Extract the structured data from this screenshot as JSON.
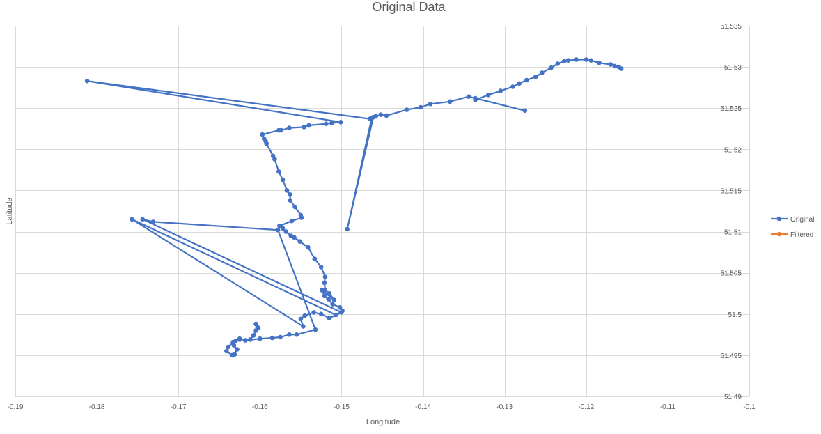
{
  "chart_data": {
    "type": "scatter",
    "title": "Original Data",
    "xlabel": "Longitude",
    "ylabel": "Latitude",
    "xlim": [
      -0.19,
      -0.1
    ],
    "ylim": [
      51.49,
      51.535
    ],
    "x_ticks": [
      -0.19,
      -0.18,
      -0.17,
      -0.16,
      -0.15,
      -0.14,
      -0.13,
      -0.12,
      -0.11,
      -0.1
    ],
    "x_tick_labels": [
      "-0.19",
      "-0.18",
      "-0.17",
      "-0.16",
      "-0.15",
      "-0.14",
      "-0.13",
      "-0.12",
      "-0.11",
      "-0.1"
    ],
    "y_ticks": [
      51.49,
      51.495,
      51.5,
      51.505,
      51.51,
      51.515,
      51.52,
      51.525,
      51.53,
      51.535
    ],
    "y_tick_labels": [
      "51.49",
      "51.495",
      "51.5",
      "51.505",
      "51.51",
      "51.515",
      "51.52",
      "51.525",
      "51.53",
      "51.535"
    ],
    "grid": true,
    "legend_position": "right",
    "series": [
      {
        "name": "Original",
        "color": "#4472c4",
        "mode": "lines+markers",
        "x": [
          -0.1275,
          -0.1336,
          -0.1344,
          -0.1367,
          -0.1391,
          -0.1403,
          -0.142,
          -0.1445,
          -0.1452,
          -0.1458,
          -0.1461,
          -0.1493,
          -0.1463,
          -0.1465,
          -0.1812,
          -0.1501,
          -0.1512,
          -0.1519,
          -0.154,
          -0.1546,
          -0.1564,
          -0.1574,
          -0.1577,
          -0.1597,
          -0.1595,
          -0.1593,
          -0.1592,
          -0.1584,
          -0.1582,
          -0.1577,
          -0.1572,
          -0.1567,
          -0.1563,
          -0.1563,
          -0.1557,
          -0.155,
          -0.1549,
          -0.1561,
          -0.1576,
          -0.1572,
          -0.1568,
          -0.1562,
          -0.1558,
          -0.1551,
          -0.1541,
          -0.1533,
          -0.1525,
          -0.152,
          -0.1521,
          -0.152,
          -0.1515,
          -0.1509,
          -0.1524,
          -0.1521,
          -0.1516,
          -0.1511,
          -0.1502,
          -0.1499,
          -0.1507,
          -0.1757,
          -0.1547,
          -0.155,
          -0.1545,
          -0.1534,
          -0.1525,
          -0.1515,
          -0.15,
          -0.1744,
          -0.1731,
          -0.1578,
          -0.1532,
          -0.1555,
          -0.1564,
          -0.1575,
          -0.1585,
          -0.16,
          -0.1618,
          -0.1625,
          -0.1633,
          -0.1639,
          -0.1641,
          -0.1634,
          -0.1631,
          -0.1628,
          -0.1632,
          -0.163,
          -0.1625,
          -0.1612,
          -0.1608,
          -0.1605,
          -0.1603,
          -0.1605,
          -0.1602
        ],
        "y": [
          51.5247,
          51.5262,
          51.5264,
          51.5258,
          51.5255,
          51.5251,
          51.5248,
          51.5241,
          51.5242,
          51.524,
          51.5239,
          51.5103,
          51.5238,
          51.5237,
          51.5283,
          51.5233,
          51.5232,
          51.5231,
          51.5229,
          51.5227,
          51.5226,
          51.5223,
          51.5223,
          51.5218,
          51.5213,
          51.521,
          51.5207,
          51.5192,
          51.5188,
          51.5173,
          51.5163,
          51.515,
          51.5145,
          51.5138,
          51.513,
          51.512,
          51.5117,
          51.5113,
          51.5107,
          51.5104,
          51.51,
          51.5095,
          51.5093,
          51.5088,
          51.5081,
          51.5067,
          51.5057,
          51.5045,
          51.5038,
          51.5029,
          51.5025,
          51.5017,
          51.5029,
          51.5022,
          51.5018,
          51.5012,
          51.5008,
          51.5004,
          51.4999,
          51.5115,
          51.4985,
          51.4994,
          51.4998,
          51.5002,
          51.5,
          51.4995,
          51.5002,
          51.5115,
          51.5112,
          51.5102,
          51.4981,
          51.4975,
          51.4975,
          51.4972,
          51.4971,
          51.497,
          51.4968,
          51.497,
          51.4966,
          51.496,
          51.4955,
          51.495,
          51.4951,
          51.4957,
          51.4962,
          51.4967,
          51.4969,
          51.4969,
          51.4974,
          51.498,
          51.4984,
          51.4988,
          51.4983
        ]
      },
      {
        "name": "Original",
        "color": "#4472c4",
        "mode": "lines+markers",
        "x": [
          -0.1336,
          -0.132,
          -0.1305,
          -0.129,
          -0.1282,
          -0.1273,
          -0.1262,
          -0.1254,
          -0.1243,
          -0.1235,
          -0.1227,
          -0.1222,
          -0.1212,
          -0.12,
          -0.1194,
          -0.1184,
          -0.117,
          -0.1165,
          -0.116,
          -0.1157
        ],
        "y": [
          51.526,
          51.5266,
          51.5271,
          51.5276,
          51.528,
          51.5284,
          51.5288,
          51.5293,
          51.5299,
          51.5304,
          51.5307,
          51.5308,
          51.5309,
          51.5309,
          51.5308,
          51.5305,
          51.5303,
          51.5301,
          51.53,
          51.5298
        ]
      },
      {
        "name": "Filtered",
        "color": "#ed7d31",
        "mode": "lines+markers",
        "x": [],
        "y": []
      }
    ]
  }
}
